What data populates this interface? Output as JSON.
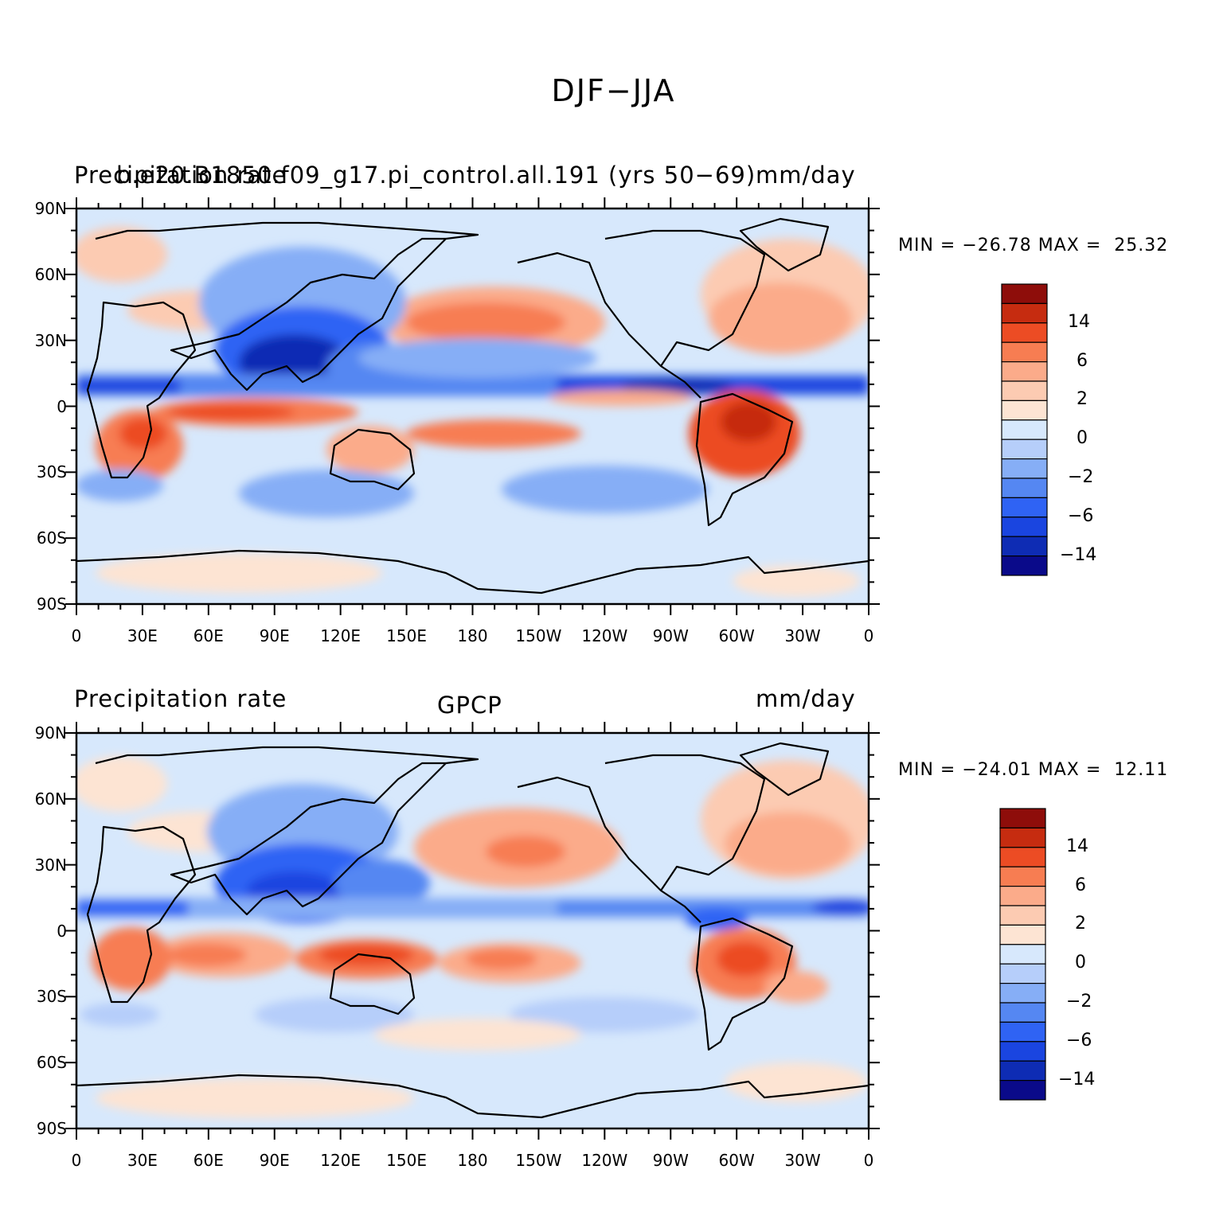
{
  "title": "DJF−JJA",
  "colors": {
    "scale": [
      "#0a0a8a",
      "#0e2cb4",
      "#1a45e0",
      "#2f63f4",
      "#5587f2",
      "#86aef6",
      "#b6cefa",
      "#d7e8fc",
      "#fde4d3",
      "#fccbb2",
      "#fbab8a",
      "#f77d52",
      "#ec4c24",
      "#c62c10",
      "#8e0d0a"
    ],
    "ocean_neutral": "#d7e8fc",
    "coast": "#000000"
  },
  "axes": {
    "lat_labels": [
      "90N",
      "60N",
      "30N",
      "0",
      "30S",
      "60S",
      "90S"
    ],
    "lon_labels": [
      "0",
      "30E",
      "60E",
      "90E",
      "120E",
      "150E",
      "180",
      "150W",
      "120W",
      "90W",
      "60W",
      "30W",
      "0"
    ]
  },
  "colorbar": {
    "labels": [
      "14",
      "6",
      "2",
      "0",
      "−2",
      "−6",
      "−14"
    ]
  },
  "panels": [
    {
      "left_title": "Precipitation rate",
      "center_title": "b.e20.B1850.f09_g17.pi_control.all.191 (yrs 50−69)",
      "right_title": "mm/day",
      "minmax_text": "MIN = −26.78 MAX =  25.32",
      "min": -26.78,
      "max": 25.32
    },
    {
      "left_title": "Precipitation rate",
      "center_title": "GPCP",
      "right_title": "mm/day",
      "minmax_text": "MIN = −24.01 MAX =  12.11",
      "min": -24.01,
      "max": 12.11
    }
  ]
}
